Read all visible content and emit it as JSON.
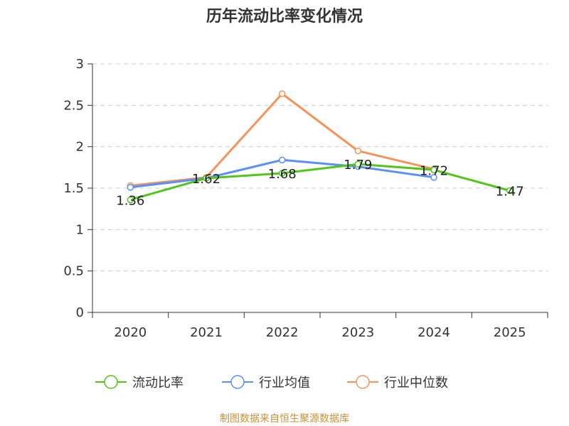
{
  "chart_data": {
    "type": "line",
    "title": "历年流动比率变化情况",
    "categories": [
      "2020",
      "2021",
      "2022",
      "2023",
      "2024",
      "2025"
    ],
    "ylim": [
      0,
      3
    ],
    "yticks": [
      "0",
      "0.5",
      "1",
      "1.5",
      "2",
      "2.5",
      "3"
    ],
    "grid": true,
    "legend_position": "bottom",
    "series": [
      {
        "name": "流动比率",
        "color": "#52c41a",
        "values": [
          1.36,
          1.62,
          1.68,
          1.79,
          1.72,
          1.47
        ],
        "labels": [
          "1.36",
          "1.62",
          "1.68",
          "1.79",
          "1.72",
          "1.47"
        ]
      },
      {
        "name": "行业均值",
        "color": "#5b8ff9",
        "values": [
          1.51,
          1.62,
          1.84,
          1.76,
          1.63,
          null
        ]
      },
      {
        "name": "行业中位数",
        "color": "#f6935b",
        "values": [
          1.53,
          1.63,
          2.64,
          1.95,
          1.73,
          null
        ]
      }
    ],
    "source": "制图数据来自恒生聚源数据库",
    "source_color": "#c8913b"
  }
}
